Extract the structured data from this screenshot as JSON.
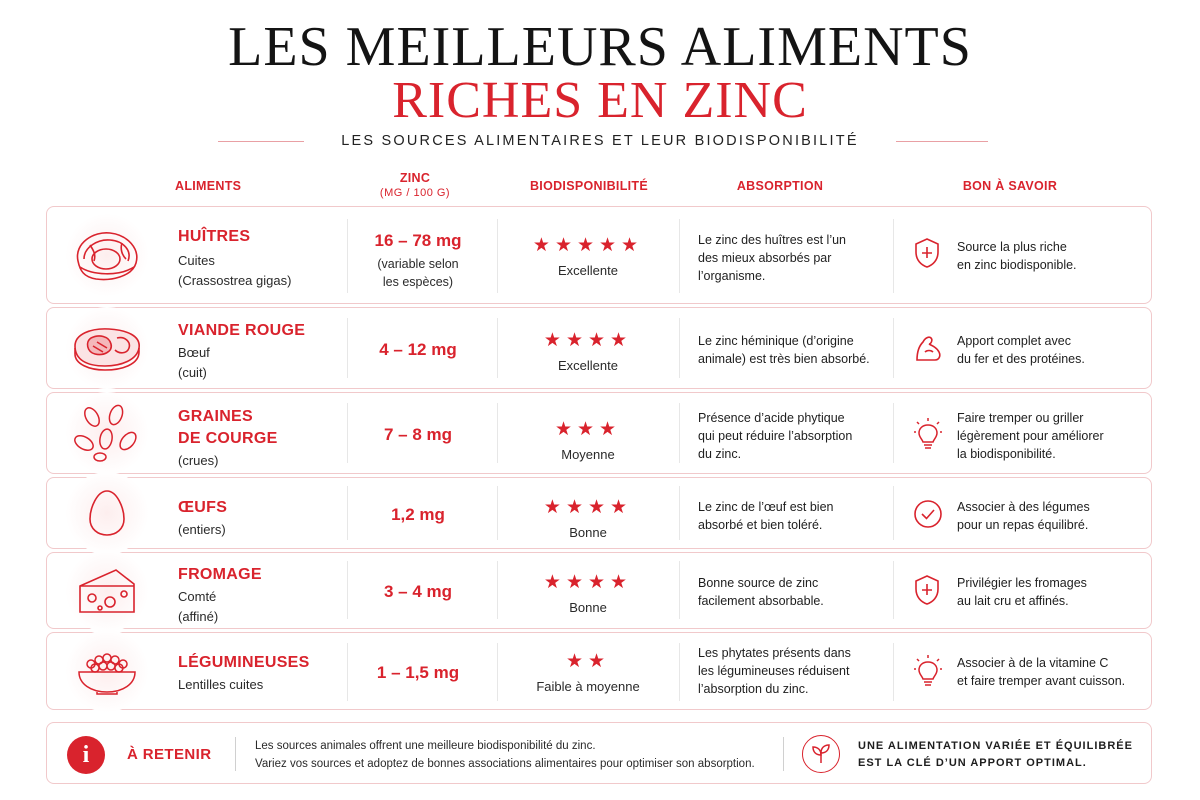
{
  "title": {
    "line1": "LES MEILLEURS ALIMENTS",
    "line2": "RICHES EN ZINC",
    "subtitle": "LES SOURCES ALIMENTAIRES ET LEUR BIODISPONIBILITÉ"
  },
  "headers": {
    "food": "ALIMENTS",
    "zinc": "ZINC",
    "zinc_unit": "(MG / 100 G)",
    "bio": "BIODISPONIBILITÉ",
    "absorption": "ABSORPTION",
    "tips": "BON À SAVOIR"
  },
  "accent_color": "#d9232d",
  "rows": [
    {
      "icon": "oyster-icon",
      "name": "HUÎTRES",
      "sub1": "Cuites",
      "sub2": "(Crassostrea gigas)",
      "zinc": "16 – 78 mg",
      "zinc_note1": "(variable selon",
      "zinc_note2": "les espèces)",
      "stars": 5,
      "stars_text": "★★★★★",
      "bio": "Excellente",
      "absorb1": "Le zinc des huîtres est l’un",
      "absorb2": "des mieux absorbés par",
      "absorb3": "l’organisme.",
      "tip_icon": "shield-icon",
      "tip1": "Source la plus riche",
      "tip2": "en zinc biodisponible.",
      "tip3": ""
    },
    {
      "icon": "steak-icon",
      "name": "VIANDE ROUGE",
      "sub1": "Bœuf",
      "sub2": "(cuit)",
      "zinc": "4 – 12 mg",
      "stars": 4,
      "stars_text": "★★★★",
      "bio": "Excellente",
      "absorb1": "Le zinc héminique (d’origine",
      "absorb2": "animale) est très bien absorbé.",
      "tip_icon": "muscle-icon",
      "tip1": "Apport complet avec",
      "tip2": "du fer et des protéines."
    },
    {
      "icon": "seeds-icon",
      "name1": "GRAINES",
      "name2": "DE COURGE",
      "sub1": "(crues)",
      "zinc": "7 – 8 mg",
      "stars": 3,
      "stars_text": "★★★",
      "bio": "Moyenne",
      "absorb1": "Présence d’acide phytique",
      "absorb2": "qui peut réduire l’absorption",
      "absorb3": "du zinc.",
      "tip_icon": "bulb-icon",
      "tip1": "Faire tremper ou griller",
      "tip2": "légèrement pour améliorer",
      "tip3": "la biodisponibilité."
    },
    {
      "icon": "egg-icon",
      "name": "ŒUFS",
      "sub1": "(entiers)",
      "zinc": "1,2 mg",
      "stars": 4,
      "stars_text": "★★★★",
      "bio": "Bonne",
      "absorb1": "Le zinc de l’œuf est bien",
      "absorb2": "absorbé et bien toléré.",
      "tip_icon": "check-circle-icon",
      "tip1": "Associer à des légumes",
      "tip2": "pour un repas équilibré."
    },
    {
      "icon": "cheese-icon",
      "name": "FROMAGE",
      "sub1": "Comté",
      "sub2": "(affiné)",
      "zinc": "3 – 4 mg",
      "stars": 4,
      "stars_text": "★★★★",
      "bio": "Bonne",
      "absorb1": "Bonne source de zinc",
      "absorb2": "facilement absorbable.",
      "tip_icon": "shield-icon",
      "tip1": "Privilégier les fromages",
      "tip2": "au lait cru et affinés."
    },
    {
      "icon": "bowl-icon",
      "name": "LÉGUMINEUSES",
      "sub1": "Lentilles cuites",
      "zinc": "1 – 1,5 mg",
      "stars": 2,
      "stars_text": "★★",
      "bio": "Faible à moyenne",
      "absorb1": "Les phytates présents dans",
      "absorb2": "les légumineuses réduisent",
      "absorb3": "l’absorption du zinc.",
      "tip_icon": "bulb-icon",
      "tip1": "Associer à de la vitamine C",
      "tip2": "et faire tremper avant cuisson."
    }
  ],
  "footer": {
    "icon": "info-icon",
    "icon_glyph": "i",
    "label": "À RETENIR",
    "note1": "Les sources animales offrent une meilleure biodisponibilité du zinc.",
    "note2": "Variez vos sources et adoptez de bonnes associations alimentaires pour optimiser son absorption.",
    "leaf_icon": "leaf-icon",
    "bold1": "UNE ALIMENTATION VARIÉE ET ÉQUILIBRÉE",
    "bold2": "EST LA CLÉ D’UN APPORT OPTIMAL."
  }
}
